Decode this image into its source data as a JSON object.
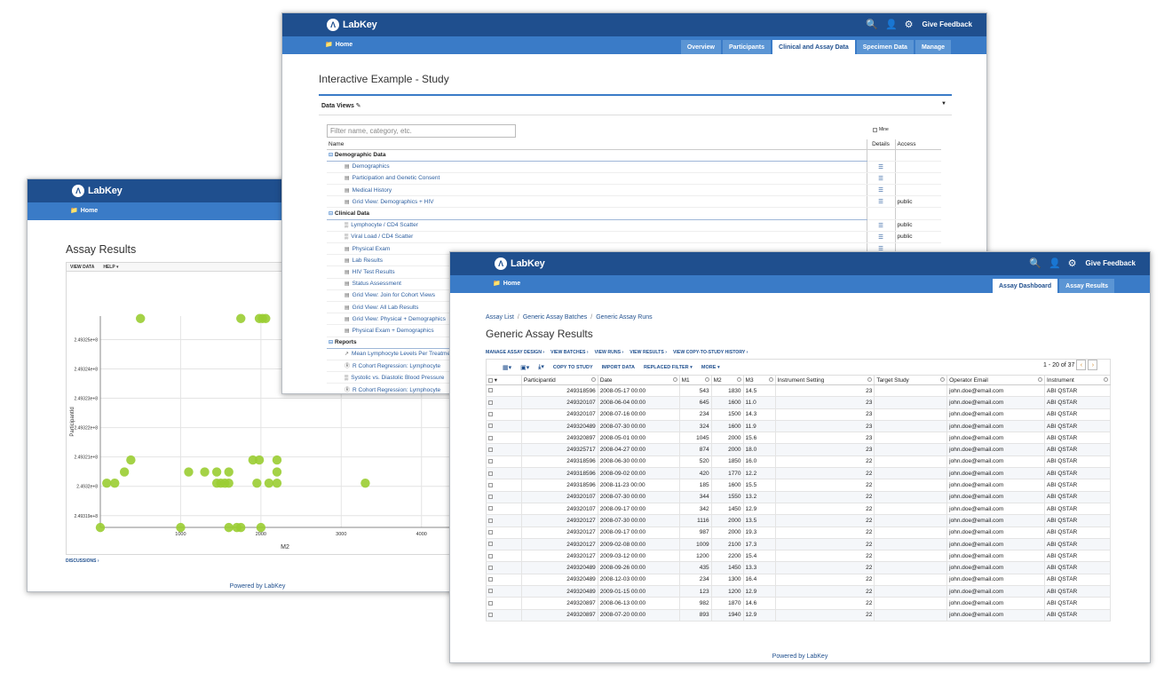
{
  "brand": "LabKey",
  "feedback": "Give Feedback",
  "home": "Home",
  "assay_window": {
    "title": "Assay Results",
    "menu": [
      "VIEW DATA",
      "HELP ▾"
    ],
    "discussions": "DISCUSSIONS ›",
    "powered": "Powered by LabKey"
  },
  "chart_data": {
    "type": "scatter",
    "xlabel": "M2",
    "ylabel": "ParticipantId",
    "x_ticks": [
      "1000",
      "2000",
      "3000",
      "4000"
    ],
    "y_ticks": [
      "2.49325e+8",
      "2.49324e+8",
      "2.49323e+8",
      "2.49322e+8",
      "2.49321e+8",
      "2.4932e+8",
      "2.49319e+8"
    ],
    "xlim": [
      0,
      4600
    ],
    "ylim": [
      249318600,
      249325800
    ],
    "color": "#9acd32",
    "points": [
      {
        "x": 500,
        "y": 249325717
      },
      {
        "x": 1750,
        "y": 249325717
      },
      {
        "x": 1980,
        "y": 249325717
      },
      {
        "x": 2020,
        "y": 249325717
      },
      {
        "x": 2060,
        "y": 249325717
      },
      {
        "x": 380,
        "y": 249320897
      },
      {
        "x": 1900,
        "y": 249320897
      },
      {
        "x": 1980,
        "y": 249320897
      },
      {
        "x": 2200,
        "y": 249320897
      },
      {
        "x": 300,
        "y": 249320489
      },
      {
        "x": 1100,
        "y": 249320489
      },
      {
        "x": 1300,
        "y": 249320489
      },
      {
        "x": 1450,
        "y": 249320489
      },
      {
        "x": 1600,
        "y": 249320489
      },
      {
        "x": 2200,
        "y": 249320489
      },
      {
        "x": 80,
        "y": 249320107
      },
      {
        "x": 180,
        "y": 249320107
      },
      {
        "x": 1450,
        "y": 249320107
      },
      {
        "x": 1500,
        "y": 249320107
      },
      {
        "x": 1550,
        "y": 249320107
      },
      {
        "x": 1600,
        "y": 249320107
      },
      {
        "x": 1950,
        "y": 249320107
      },
      {
        "x": 2100,
        "y": 249320107
      },
      {
        "x": 2200,
        "y": 249320107
      },
      {
        "x": 3300,
        "y": 249320107
      },
      {
        "x": 0,
        "y": 249318596
      },
      {
        "x": 1000,
        "y": 249318596
      },
      {
        "x": 1600,
        "y": 249318596
      },
      {
        "x": 1700,
        "y": 249318596
      },
      {
        "x": 1750,
        "y": 249318596
      },
      {
        "x": 2000,
        "y": 249318596
      }
    ]
  },
  "study_window": {
    "tabs": [
      "Overview",
      "Participants",
      "Clinical and Assay Data",
      "Specimen Data",
      "Manage"
    ],
    "active_tab": 2,
    "title": "Interactive Example - Study",
    "panel_title": "Data Views ✎",
    "filter_placeholder": "Filter name, category, etc.",
    "mine_label": "Mine",
    "columns": {
      "name": "Name",
      "details": "Details",
      "access": "Access"
    },
    "rows": [
      {
        "kind": "cat",
        "name": "Demographic Data",
        "access": ""
      },
      {
        "kind": "item",
        "icon": "grid",
        "name": "Demographics",
        "access": ""
      },
      {
        "kind": "item",
        "icon": "grid",
        "name": "Participation and Genetic Consent",
        "access": ""
      },
      {
        "kind": "item",
        "icon": "grid",
        "name": "Medical History",
        "access": ""
      },
      {
        "kind": "item",
        "icon": "grid",
        "name": "Grid View: Demographics + HIV",
        "access": "public"
      },
      {
        "kind": "cat",
        "name": "Clinical Data",
        "access": ""
      },
      {
        "kind": "item",
        "icon": "chart",
        "name": "Lymphocyte / CD4 Scatter",
        "access": "public"
      },
      {
        "kind": "item",
        "icon": "chart",
        "name": "Viral Load / CD4 Scatter",
        "access": "public"
      },
      {
        "kind": "item",
        "icon": "grid",
        "name": "Physical Exam",
        "access": ""
      },
      {
        "kind": "item",
        "icon": "grid",
        "name": "Lab Results",
        "access": ""
      },
      {
        "kind": "item",
        "icon": "grid",
        "name": "HIV Test Results",
        "access": ""
      },
      {
        "kind": "item",
        "icon": "grid",
        "name": "Status Assessment",
        "access": ""
      },
      {
        "kind": "item",
        "icon": "grid",
        "name": "Grid View: Join for Cohort Views",
        "access": ""
      },
      {
        "kind": "item",
        "icon": "grid",
        "name": "Grid View: All Lab Results",
        "access": ""
      },
      {
        "kind": "item",
        "icon": "grid",
        "name": "Grid View: Physical + Demographics",
        "access": ""
      },
      {
        "kind": "item",
        "icon": "grid",
        "name": "Physical Exam + Demographics",
        "access": ""
      },
      {
        "kind": "cat",
        "name": "Reports",
        "access": ""
      },
      {
        "kind": "item",
        "icon": "line",
        "name": "Mean Lymphocyte Levels Per Treatment",
        "access": ""
      },
      {
        "kind": "item",
        "icon": "r",
        "name": "R Cohort Regression: Lymphocyte",
        "access": ""
      },
      {
        "kind": "item",
        "icon": "chart",
        "name": "Systolic vs. Diastolic Blood Pressure",
        "access": ""
      },
      {
        "kind": "item",
        "icon": "r",
        "name": "R Cohort Regression: Lymphocyte",
        "access": ""
      }
    ]
  },
  "results_window": {
    "tabs": [
      "Assay Dashboard",
      "Assay Results"
    ],
    "active_tab": 0,
    "breadcrumb": [
      "Assay List",
      "Generic Assay Batches",
      "Generic Assay Runs"
    ],
    "title": "Generic Assay Results",
    "actions": [
      "MANAGE ASSAY DESIGN ›",
      "VIEW BATCHES ›",
      "VIEW RUNS ›",
      "VIEW RESULTS ›",
      "VIEW COPY-TO-STUDY HISTORY ›"
    ],
    "toolbar": {
      "copy": "COPY TO STUDY",
      "import": "IMPORT DATA",
      "replaced": "REPLACED FILTER ▾",
      "more": "MORE ▾"
    },
    "pager": "1 - 20 of 37",
    "powered": "Powered by LabKey",
    "columns": [
      "Participantid",
      "Date",
      "M1",
      "M2",
      "M3",
      "Instrument Setting",
      "Target Study",
      "Operator Email",
      "Instrument"
    ],
    "rows": [
      [
        "249318596",
        "2008-05-17 00:00",
        "543",
        "1830",
        "14.5",
        "23",
        "",
        "john.doe@email.com",
        "ABI QSTAR"
      ],
      [
        "249320107",
        "2008-06-04 00:00",
        "645",
        "1600",
        "11.0",
        "23",
        "",
        "john.doe@email.com",
        "ABI QSTAR"
      ],
      [
        "249320107",
        "2008-07-16 00:00",
        "234",
        "1500",
        "14.3",
        "23",
        "",
        "john.doe@email.com",
        "ABI QSTAR"
      ],
      [
        "249320489",
        "2008-07-30 00:00",
        "324",
        "1600",
        "11.9",
        "23",
        "",
        "john.doe@email.com",
        "ABI QSTAR"
      ],
      [
        "249320897",
        "2008-05-01 00:00",
        "1045",
        "2000",
        "15.6",
        "23",
        "",
        "john.doe@email.com",
        "ABI QSTAR"
      ],
      [
        "249325717",
        "2008-04-27 00:00",
        "874",
        "2000",
        "18.0",
        "23",
        "",
        "john.doe@email.com",
        "ABI QSTAR"
      ],
      [
        "249318596",
        "2008-06-30 00:00",
        "520",
        "1850",
        "16.0",
        "22",
        "",
        "john.doe@email.com",
        "ABI QSTAR"
      ],
      [
        "249318596",
        "2008-09-02 00:00",
        "420",
        "1770",
        "12.2",
        "22",
        "",
        "john.doe@email.com",
        "ABI QSTAR"
      ],
      [
        "249318596",
        "2008-11-23 00:00",
        "185",
        "1600",
        "15.5",
        "22",
        "",
        "john.doe@email.com",
        "ABI QSTAR"
      ],
      [
        "249320107",
        "2008-07-30 00:00",
        "344",
        "1550",
        "13.2",
        "22",
        "",
        "john.doe@email.com",
        "ABI QSTAR"
      ],
      [
        "249320107",
        "2008-09-17 00:00",
        "342",
        "1450",
        "12.9",
        "22",
        "",
        "john.doe@email.com",
        "ABI QSTAR"
      ],
      [
        "249320127",
        "2008-07-30 00:00",
        "1116",
        "2000",
        "13.5",
        "22",
        "",
        "john.doe@email.com",
        "ABI QSTAR"
      ],
      [
        "249320127",
        "2008-09-17 00:00",
        "987",
        "2000",
        "19.3",
        "22",
        "",
        "john.doe@email.com",
        "ABI QSTAR"
      ],
      [
        "249320127",
        "2009-02-08 00:00",
        "1009",
        "2100",
        "17.3",
        "22",
        "",
        "john.doe@email.com",
        "ABI QSTAR"
      ],
      [
        "249320127",
        "2009-03-12 00:00",
        "1200",
        "2200",
        "15.4",
        "22",
        "",
        "john.doe@email.com",
        "ABI QSTAR"
      ],
      [
        "249320489",
        "2008-09-26 00:00",
        "435",
        "1450",
        "13.3",
        "22",
        "",
        "john.doe@email.com",
        "ABI QSTAR"
      ],
      [
        "249320489",
        "2008-12-03 00:00",
        "234",
        "1300",
        "16.4",
        "22",
        "",
        "john.doe@email.com",
        "ABI QSTAR"
      ],
      [
        "249320489",
        "2009-01-15 00:00",
        "123",
        "1200",
        "12.9",
        "22",
        "",
        "john.doe@email.com",
        "ABI QSTAR"
      ],
      [
        "249320897",
        "2008-06-13 00:00",
        "982",
        "1870",
        "14.6",
        "22",
        "",
        "john.doe@email.com",
        "ABI QSTAR"
      ],
      [
        "249320897",
        "2008-07-20 00:00",
        "893",
        "1940",
        "12.9",
        "22",
        "",
        "john.doe@email.com",
        "ABI QSTAR"
      ]
    ]
  }
}
